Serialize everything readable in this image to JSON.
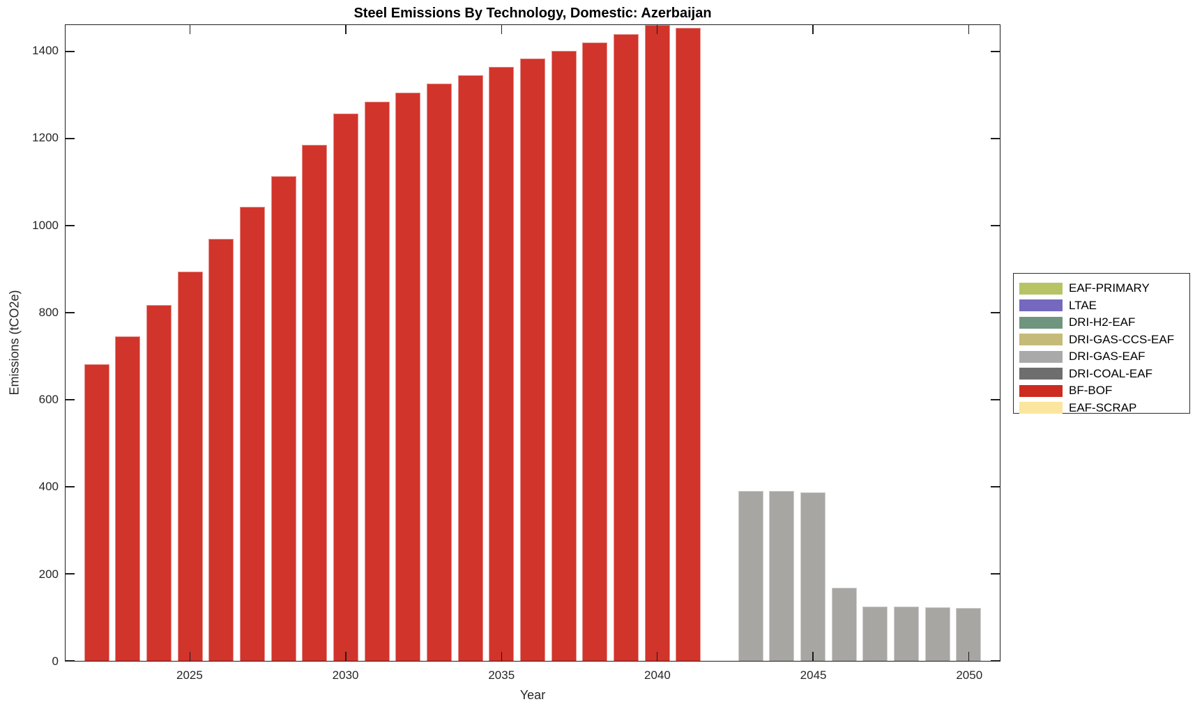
{
  "chart_data": {
    "type": "bar",
    "title": "Steel Emissions By Technology, Domestic: Azerbaijan",
    "xlabel": "Year",
    "ylabel": "Emissions (tCO2e)",
    "xlim": [
      2021,
      2051
    ],
    "ylim": [
      0,
      1461
    ],
    "xticks": [
      2025,
      2030,
      2035,
      2040,
      2045,
      2050
    ],
    "yticks": [
      0,
      200,
      400,
      600,
      800,
      1000,
      1200,
      1400
    ],
    "grid": false,
    "legend_position": "right-outside",
    "bar_width_years": 0.8,
    "series": [
      {
        "name": "BF-BOF",
        "color": "#d1342b",
        "x": [
          2022,
          2023,
          2024,
          2025,
          2026,
          2027,
          2028,
          2029,
          2030,
          2031,
          2032,
          2033,
          2034,
          2035,
          2036,
          2037,
          2038,
          2039,
          2040,
          2041
        ],
        "values": [
          682,
          745,
          817,
          894,
          970,
          1044,
          1114,
          1186,
          1258,
          1285,
          1306,
          1327,
          1346,
          1365,
          1384,
          1402,
          1421,
          1440,
          1461,
          1454
        ]
      },
      {
        "name": "DRI-GAS-EAF",
        "color": "#a8a6a3",
        "x": [
          2043,
          2044,
          2045,
          2046,
          2047,
          2048,
          2049,
          2050
        ],
        "values": [
          391,
          390,
          388,
          168,
          125,
          125,
          123,
          121
        ]
      }
    ],
    "legend": [
      {
        "label": "EAF-PRIMARY",
        "color": "#b8c365"
      },
      {
        "label": "LTAE",
        "color": "#7568bf"
      },
      {
        "label": "DRI-H2-EAF",
        "color": "#6f957e"
      },
      {
        "label": "DRI-GAS-CCS-EAF",
        "color": "#c6ba78"
      },
      {
        "label": "DRI-GAS-EAF",
        "color": "#a9a9a9"
      },
      {
        "label": "DRI-COAL-EAF",
        "color": "#6e6e6e"
      },
      {
        "label": "BF-BOF",
        "color": "#cd2a20"
      },
      {
        "label": "EAF-SCRAP",
        "color": "#fae69e"
      }
    ]
  }
}
